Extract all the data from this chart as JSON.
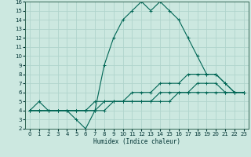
{
  "xlabel": "Humidex (Indice chaleur)",
  "xlim": [
    -0.5,
    23.5
  ],
  "ylim": [
    2,
    16
  ],
  "xticks": [
    0,
    1,
    2,
    3,
    4,
    5,
    6,
    7,
    8,
    9,
    10,
    11,
    12,
    13,
    14,
    15,
    16,
    17,
    18,
    19,
    20,
    21,
    22,
    23
  ],
  "yticks": [
    2,
    3,
    4,
    5,
    6,
    7,
    8,
    9,
    10,
    11,
    12,
    13,
    14,
    15,
    16
  ],
  "bg_color": "#cce8e0",
  "grid_color": "#b0d4cc",
  "line_color": "#006655",
  "series1": [
    4,
    5,
    4,
    4,
    4,
    3,
    2,
    4,
    9,
    12,
    14,
    15,
    16,
    15,
    16,
    15,
    14,
    12,
    10,
    8,
    8,
    7,
    6,
    6
  ],
  "series2": [
    4,
    4,
    4,
    4,
    4,
    4,
    4,
    5,
    5,
    5,
    5,
    6,
    6,
    6,
    7,
    7,
    7,
    8,
    8,
    8,
    8,
    7,
    6,
    6
  ],
  "series3": [
    4,
    4,
    4,
    4,
    4,
    4,
    4,
    4,
    5,
    5,
    5,
    5,
    5,
    5,
    6,
    6,
    6,
    6,
    7,
    7,
    7,
    6,
    6,
    6
  ],
  "series4": [
    4,
    4,
    4,
    4,
    4,
    4,
    4,
    4,
    4,
    5,
    5,
    5,
    5,
    5,
    5,
    5,
    6,
    6,
    6,
    6,
    6,
    6,
    6,
    6
  ]
}
